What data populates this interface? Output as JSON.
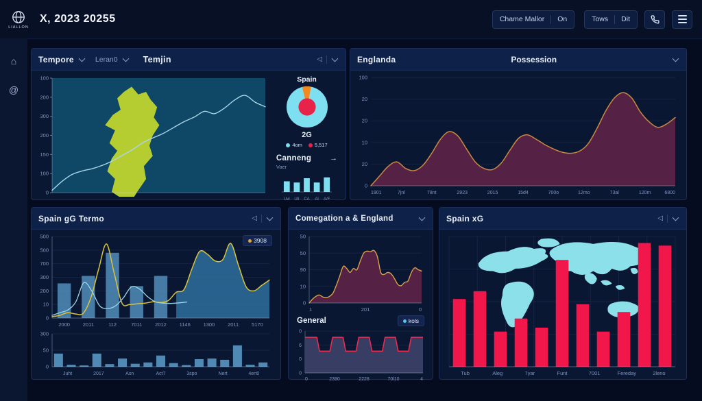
{
  "topbar": {
    "logo_text": "LIALLON",
    "title": "X, 2023 20255",
    "chip1_left": "Chame Mallor",
    "chip1_right": "On",
    "chip2_left": "Tows",
    "chip2_right": "Dit"
  },
  "icons": {
    "home": "⌂",
    "activity": "@",
    "back": "◁",
    "arrow_right": "→"
  },
  "p1": {
    "dropdown1": "Tempore",
    "dropdown2": "Leran0",
    "title": "Temjin",
    "donut_title": "Spain",
    "donut_caption": "2G",
    "legend1": "4om",
    "legend2": "5,517",
    "legend1_color": "#7edff0",
    "legend2_color": "#e8234a",
    "canneng_title": "Canneng",
    "canneng_sub": "Vaer"
  },
  "p2": {
    "left_label": "Englanda",
    "title": "Possession"
  },
  "p3": {
    "title": "Spain gG Termo",
    "legend_value": "3908",
    "legend_color": "#e8a33d"
  },
  "p4": {
    "title": "Comegation a & England",
    "general_title": "General",
    "general_legend": "kols",
    "general_legend_color": "#57c8ea"
  },
  "p5": {
    "title": "Spain xG"
  },
  "chart_data": [
    {
      "id": "map-line",
      "type": "xy",
      "title": "Temjin map trend",
      "bg": "#0f4766",
      "no_grid": true,
      "axis_bottom": true,
      "map": "iberia",
      "map_color": "#b6cd32",
      "map_region": [
        0.16,
        0.03,
        0.52,
        1.12
      ],
      "ymax": 100,
      "yticks": [
        "100",
        "200",
        "300",
        "200",
        "150",
        "100",
        "0"
      ],
      "series": [
        {
          "name": "trend-line",
          "color": "#a9d6e8",
          "width": 1.4,
          "smooth": true,
          "values": [
            2,
            10,
            16,
            19,
            21,
            24,
            28,
            33,
            38,
            44,
            48,
            52,
            57,
            62,
            66,
            71,
            69,
            74,
            81,
            85,
            79,
            75
          ]
        }
      ]
    },
    {
      "id": "donut",
      "type": "donut",
      "title": "Spain",
      "slices": [
        {
          "label": "4om",
          "value": 93,
          "color": "#7edff0"
        },
        {
          "label": "wedge",
          "value": 7,
          "color": "#f5881f"
        }
      ],
      "wedge_start_deg": -104,
      "center": {
        "label": "5,517",
        "color": "#e8234a",
        "r_frac": 0.42
      }
    },
    {
      "id": "canneng",
      "type": "xy",
      "title": "Canneng",
      "ymax": 100,
      "label_size": 6,
      "xlabels": [
        "Uvl",
        "Ull",
        "CA",
        "Al",
        "A/F"
      ],
      "bars": {
        "color": "#7edff0",
        "values": [
          62,
          55,
          80,
          55,
          85
        ],
        "width_frac": 0.6
      }
    },
    {
      "id": "possession",
      "type": "xy",
      "title": "Possession",
      "ymax": 100,
      "axis_left": false,
      "label_size": 7,
      "yticks": [
        "100",
        "20",
        "20",
        "10",
        "20",
        "0"
      ],
      "xlabels": [
        "1901",
        "7jnl",
        "78nt",
        "2923",
        "2015",
        "15d4",
        "700o",
        "12mo",
        "73al",
        "120m",
        "6800"
      ],
      "series": [
        {
          "name": "possession-area",
          "color": "#c98a41",
          "width": 1.5,
          "smooth": true,
          "fill": "#5a2347",
          "fill_opacity": 0.95,
          "values": [
            0,
            9,
            18,
            22,
            16,
            14,
            19,
            30,
            43,
            50,
            46,
            34,
            22,
            16,
            15,
            21,
            33,
            44,
            47,
            43,
            38,
            34,
            31,
            30,
            32,
            39,
            53,
            69,
            81,
            86,
            81,
            68,
            59,
            54,
            57,
            63
          ]
        }
      ]
    },
    {
      "id": "spain-gg",
      "type": "xy",
      "title": "Spain gG Termo",
      "ymax": 600,
      "yticks": [
        "500",
        "500",
        "700",
        "300",
        "200",
        "10",
        "0"
      ],
      "xlabels": [
        "2000",
        "2011",
        "112",
        "7011",
        "2012",
        "1146",
        "1300",
        "2011",
        "5170"
      ],
      "bars": {
        "color": "#4f8ab5",
        "opacity": 0.88,
        "values": [
          255,
          310,
          480,
          235,
          310,
          null,
          null,
          null,
          null
        ],
        "width_frac": 0.55
      },
      "series": [
        {
          "name": "xg-line",
          "color": "#d9c43c",
          "width": 1.5,
          "smooth": true,
          "fill": "#2f6f9d",
          "fill_opacity": 0.85,
          "fill_from": 0.55,
          "values": [
            10,
            20,
            40,
            30,
            35,
            150,
            360,
            545,
            330,
            110,
            100,
            105,
            110,
            120,
            115,
            130,
            190,
            210,
            360,
            490,
            470,
            420,
            430,
            550,
            390,
            230,
            200,
            240,
            280
          ]
        },
        {
          "name": "form-line",
          "color": "#9ad6ea",
          "width": 1.3,
          "smooth": true,
          "domain": [
            0,
            0.62
          ],
          "values": [
            20,
            40,
            60,
            120,
            260,
            200,
            90,
            70,
            90,
            150,
            230,
            215,
            160,
            120,
            110,
            108,
            112,
            118
          ]
        }
      ]
    },
    {
      "id": "gg-mini",
      "type": "xy",
      "title": "Spain gG Termo monthly",
      "ymax": 100,
      "label_size": 7,
      "yticks": [
        "300",
        "50",
        "0"
      ],
      "xlabels": [
        "Juht",
        "2017",
        "Asn",
        "Act7",
        "3spo",
        "Nert",
        "4ert0"
      ],
      "bars": {
        "color": "#4f8ab5",
        "values": [
          40,
          6,
          4,
          40,
          8,
          25,
          9,
          13,
          34,
          11,
          5,
          23,
          25,
          21,
          65,
          6,
          13
        ],
        "width_frac": 0.7
      }
    },
    {
      "id": "comegation",
      "type": "xy",
      "title": "Comegation a & England",
      "ymax": 100,
      "yticks": [
        "50",
        "50",
        "90",
        "10",
        "0"
      ],
      "xlabels": [
        "1",
        "201",
        "0"
      ],
      "series": [
        {
          "name": "comegation-area",
          "color": "#d8a04a",
          "width": 1.4,
          "smooth": true,
          "fill": "#5a2347",
          "fill_opacity": 0.95,
          "values": [
            0,
            6,
            10,
            12,
            9,
            8,
            10,
            15,
            27,
            41,
            55,
            52,
            46,
            52,
            50,
            63,
            75,
            78,
            77,
            79,
            70,
            46,
            43,
            46,
            44,
            37,
            28,
            26,
            31,
            33,
            46,
            53,
            50,
            48
          ]
        }
      ]
    },
    {
      "id": "general-step",
      "type": "step",
      "title": "General",
      "ymax": 100,
      "yticks": [
        "0",
        "6",
        "0",
        "0"
      ],
      "xlabels": [
        "0",
        "2390",
        "2228",
        "70l10",
        "4"
      ],
      "color": "#ed2b50",
      "fill": "#3c4168",
      "fill_opacity": 0.9,
      "values": [
        85,
        52,
        85,
        52,
        85,
        52,
        85,
        52,
        85
      ]
    },
    {
      "id": "spain-xg",
      "type": "xy",
      "title": "Spain xG",
      "ymax": 100,
      "grid": true,
      "map": "world",
      "map_color": "#8ce0ea",
      "map_region": [
        0.08,
        0.0,
        0.82,
        0.95
      ],
      "xlabels": [
        "Tub",
        "Aleg",
        "7yar",
        "Funt",
        "7001",
        "Fereday",
        "2leno"
      ],
      "bars": {
        "color": "#f2174b",
        "values": [
          52,
          58,
          27,
          37,
          30,
          82,
          48,
          27,
          42,
          95,
          93
        ],
        "width_frac": 0.62
      }
    }
  ]
}
